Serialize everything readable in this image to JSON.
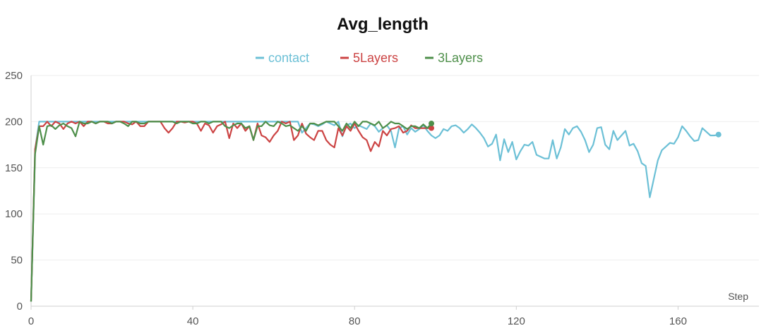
{
  "chart_data": {
    "type": "line",
    "title": "Avg_length",
    "xlabel": "Step",
    "ylabel": "",
    "xlim": [
      0,
      180
    ],
    "ylim": [
      0,
      250
    ],
    "x_ticks": [
      0,
      40,
      80,
      120,
      160
    ],
    "y_ticks": [
      0,
      50,
      100,
      150,
      200,
      250
    ],
    "grid": "horizontal",
    "legend_position": "top-center",
    "series": [
      {
        "name": "contact",
        "color": "#6cc0d6",
        "x": [
          0,
          1,
          2,
          3,
          4,
          5,
          6,
          7,
          8,
          9,
          10,
          11,
          12,
          13,
          14,
          15,
          16,
          17,
          18,
          19,
          20,
          21,
          22,
          23,
          24,
          25,
          26,
          27,
          28,
          29,
          30,
          31,
          32,
          33,
          34,
          35,
          36,
          37,
          38,
          39,
          40,
          41,
          42,
          43,
          44,
          45,
          46,
          47,
          48,
          49,
          50,
          51,
          52,
          53,
          54,
          55,
          56,
          57,
          58,
          59,
          60,
          61,
          62,
          63,
          64,
          65,
          66,
          67,
          68,
          69,
          70,
          71,
          72,
          73,
          74,
          75,
          76,
          77,
          78,
          79,
          80,
          81,
          82,
          83,
          84,
          85,
          86,
          87,
          88,
          89,
          90,
          91,
          92,
          93,
          94,
          95,
          96,
          97,
          98,
          99,
          100,
          101,
          102,
          103,
          104,
          105,
          106,
          107,
          108,
          109,
          110,
          111,
          112,
          113,
          114,
          115,
          116,
          117,
          118,
          119,
          120,
          121,
          122,
          123,
          124,
          125,
          126,
          127,
          128,
          129,
          130,
          131,
          132,
          133,
          134,
          135,
          136,
          137,
          138,
          139,
          140,
          141,
          142,
          143,
          144,
          145,
          146,
          147,
          148,
          149,
          150,
          151,
          152,
          153,
          154,
          155,
          156,
          157,
          158,
          159,
          160,
          161,
          162,
          163,
          164,
          165,
          166,
          167,
          168,
          169,
          170
        ],
        "y": [
          5,
          170,
          200,
          200,
          200,
          200,
          200,
          200,
          200,
          200,
          200,
          200,
          200,
          200,
          200,
          200,
          200,
          200,
          200,
          200,
          200,
          200,
          200,
          200,
          200,
          200,
          200,
          200,
          200,
          200,
          200,
          200,
          200,
          200,
          200,
          200,
          200,
          200,
          200,
          200,
          200,
          200,
          200,
          200,
          200,
          200,
          200,
          200,
          200,
          200,
          200,
          200,
          200,
          200,
          200,
          200,
          200,
          200,
          200,
          200,
          200,
          200,
          200,
          200,
          200,
          200,
          200,
          188,
          193,
          198,
          197,
          195,
          197,
          200,
          198,
          196,
          200,
          184,
          196,
          198,
          193,
          196,
          194,
          192,
          198,
          195,
          189,
          193,
          196,
          190,
          172,
          193,
          195,
          186,
          193,
          189,
          192,
          196,
          190,
          185,
          182,
          185,
          192,
          190,
          195,
          196,
          193,
          188,
          192,
          197,
          193,
          188,
          182,
          173,
          176,
          186,
          158,
          181,
          167,
          178,
          159,
          168,
          175,
          174,
          178,
          164,
          162,
          160,
          160,
          180,
          160,
          172,
          192,
          186,
          193,
          195,
          189,
          180,
          167,
          175,
          193,
          194,
          175,
          170,
          190,
          180,
          185,
          190,
          174,
          176,
          168,
          155,
          152,
          118,
          138,
          158,
          169,
          173,
          177,
          176,
          183,
          195,
          190,
          184,
          179,
          180,
          193,
          189,
          185,
          185,
          186
        ]
      },
      {
        "name": "5Layers",
        "color": "#cc4444",
        "x": [
          0,
          1,
          2,
          3,
          4,
          5,
          6,
          7,
          8,
          9,
          10,
          11,
          12,
          13,
          14,
          15,
          16,
          17,
          18,
          19,
          20,
          21,
          22,
          23,
          24,
          25,
          26,
          27,
          28,
          29,
          30,
          31,
          32,
          33,
          34,
          35,
          36,
          37,
          38,
          39,
          40,
          41,
          42,
          43,
          44,
          45,
          46,
          47,
          48,
          49,
          50,
          51,
          52,
          53,
          54,
          55,
          56,
          57,
          58,
          59,
          60,
          61,
          62,
          63,
          64,
          65,
          66,
          67,
          68,
          69,
          70,
          71,
          72,
          73,
          74,
          75,
          76,
          77,
          78,
          79,
          80,
          81,
          82,
          83,
          84,
          85,
          86,
          87,
          88,
          89,
          90,
          91,
          92,
          93,
          94,
          95,
          96,
          97,
          98,
          99
        ],
        "y": [
          5,
          170,
          195,
          195,
          200,
          195,
          200,
          198,
          192,
          198,
          200,
          198,
          200,
          195,
          200,
          200,
          198,
          200,
          200,
          198,
          198,
          200,
          200,
          200,
          198,
          197,
          200,
          195,
          195,
          200,
          200,
          200,
          200,
          193,
          188,
          193,
          200,
          200,
          199,
          200,
          200,
          198,
          190,
          198,
          196,
          188,
          195,
          197,
          200,
          182,
          198,
          193,
          198,
          190,
          195,
          180,
          198,
          185,
          183,
          178,
          185,
          190,
          200,
          198,
          200,
          180,
          185,
          198,
          187,
          183,
          180,
          190,
          190,
          180,
          175,
          172,
          193,
          185,
          195,
          190,
          198,
          190,
          183,
          180,
          168,
          178,
          173,
          190,
          185,
          192,
          193,
          195,
          188,
          190,
          196,
          193,
          193,
          193,
          193,
          193
        ]
      },
      {
        "name": "3Layers",
        "color": "#4e8f4a",
        "x": [
          0,
          1,
          2,
          3,
          4,
          5,
          6,
          7,
          8,
          9,
          10,
          11,
          12,
          13,
          14,
          15,
          16,
          17,
          18,
          19,
          20,
          21,
          22,
          23,
          24,
          25,
          26,
          27,
          28,
          29,
          30,
          31,
          32,
          33,
          34,
          35,
          36,
          37,
          38,
          39,
          40,
          41,
          42,
          43,
          44,
          45,
          46,
          47,
          48,
          49,
          50,
          51,
          52,
          53,
          54,
          55,
          56,
          57,
          58,
          59,
          60,
          61,
          62,
          63,
          64,
          65,
          66,
          67,
          68,
          69,
          70,
          71,
          72,
          73,
          74,
          75,
          76,
          77,
          78,
          79,
          80,
          81,
          82,
          83,
          84,
          85,
          86,
          87,
          88,
          89,
          90,
          91,
          92,
          93,
          94,
          95,
          96,
          97,
          98,
          99
        ],
        "y": [
          5,
          165,
          195,
          175,
          195,
          196,
          192,
          196,
          198,
          195,
          193,
          184,
          200,
          198,
          198,
          200,
          198,
          200,
          200,
          200,
          198,
          200,
          200,
          198,
          195,
          200,
          200,
          198,
          198,
          200,
          200,
          200,
          200,
          200,
          200,
          200,
          198,
          200,
          200,
          200,
          198,
          198,
          200,
          200,
          198,
          200,
          200,
          200,
          195,
          193,
          196,
          198,
          198,
          193,
          195,
          180,
          195,
          195,
          200,
          196,
          195,
          200,
          198,
          195,
          196,
          193,
          190,
          195,
          190,
          198,
          198,
          196,
          198,
          200,
          200,
          200,
          195,
          190,
          198,
          193,
          200,
          195,
          200,
          200,
          198,
          196,
          200,
          193,
          196,
          200,
          198,
          198,
          195,
          192,
          195,
          195,
          193,
          197,
          193,
          198
        ]
      }
    ]
  }
}
